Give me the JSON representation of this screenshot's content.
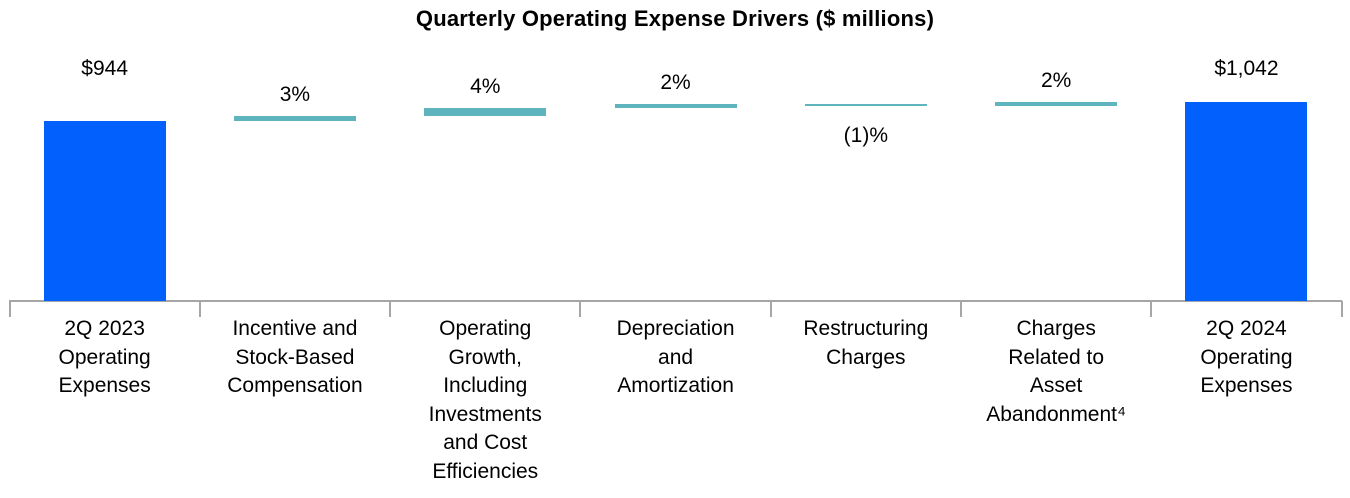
{
  "chart_data": {
    "type": "bar",
    "subtype": "waterfall",
    "title": "Quarterly Operating Expense Drivers ($ millions)",
    "xlabel": "",
    "ylabel": "",
    "ylim": [
      0,
      1100
    ],
    "grid": false,
    "legend": false,
    "units": "$ millions",
    "colors": {
      "total_bar": "#0261FC",
      "delta_bar": "#5FB5BD",
      "axis": "#A6A6A6",
      "text": "#000000",
      "background": "#FFFFFF"
    },
    "categories": [
      "2Q 2023 Operating Expenses",
      "Incentive and Stock-Based Compensation",
      "Operating Growth, Including Investments and Cost Efficiencies",
      "Depreciation and Amortization",
      "Restructuring Charges",
      "Charges Related to Asset Abandonment⁴",
      "2Q 2024 Operating Expenses"
    ],
    "bars": [
      {
        "category": "2Q 2023 Operating Expenses",
        "category_lines": "2Q 2023\nOperating\nExpenses",
        "kind": "total",
        "start": 0,
        "end": 944,
        "label": "$944",
        "label_position": "above"
      },
      {
        "category": "Incentive and Stock-Based Compensation",
        "category_lines": "Incentive and\nStock-Based\nCompensation",
        "kind": "increase",
        "pct_change": 3,
        "start": 944,
        "end": 972.3,
        "label": "3%",
        "label_position": "above"
      },
      {
        "category": "Operating Growth, Including Investments and Cost Efficiencies",
        "category_lines": "Operating\nGrowth,\nIncluding\nInvestments\nand Cost\nEfficiencies",
        "kind": "increase",
        "pct_change": 4,
        "start": 972.3,
        "end": 1011.2,
        "label": "4%",
        "label_position": "above"
      },
      {
        "category": "Depreciation and Amortization",
        "category_lines": "Depreciation\nand\nAmortization",
        "kind": "increase",
        "pct_change": 2,
        "start": 1011.2,
        "end": 1031.4,
        "label": "2%",
        "label_position": "above"
      },
      {
        "category": "Restructuring Charges",
        "category_lines": "Restructuring\nCharges",
        "kind": "decrease",
        "pct_change": -1,
        "start": 1031.4,
        "end": 1021.1,
        "label": "(1)%",
        "label_position": "below"
      },
      {
        "category": "Charges Related to Asset Abandonment⁴",
        "category_lines": "Charges\nRelated to\nAsset\nAbandonment⁴",
        "kind": "increase",
        "pct_change": 2,
        "start": 1021.1,
        "end": 1041.5,
        "label": "2%",
        "label_position": "above"
      },
      {
        "category": "2Q 2024 Operating Expenses",
        "category_lines": "2Q 2024\nOperating\nExpenses",
        "kind": "total",
        "start": 0,
        "end": 1042,
        "label": "$1,042",
        "label_position": "above"
      }
    ]
  }
}
